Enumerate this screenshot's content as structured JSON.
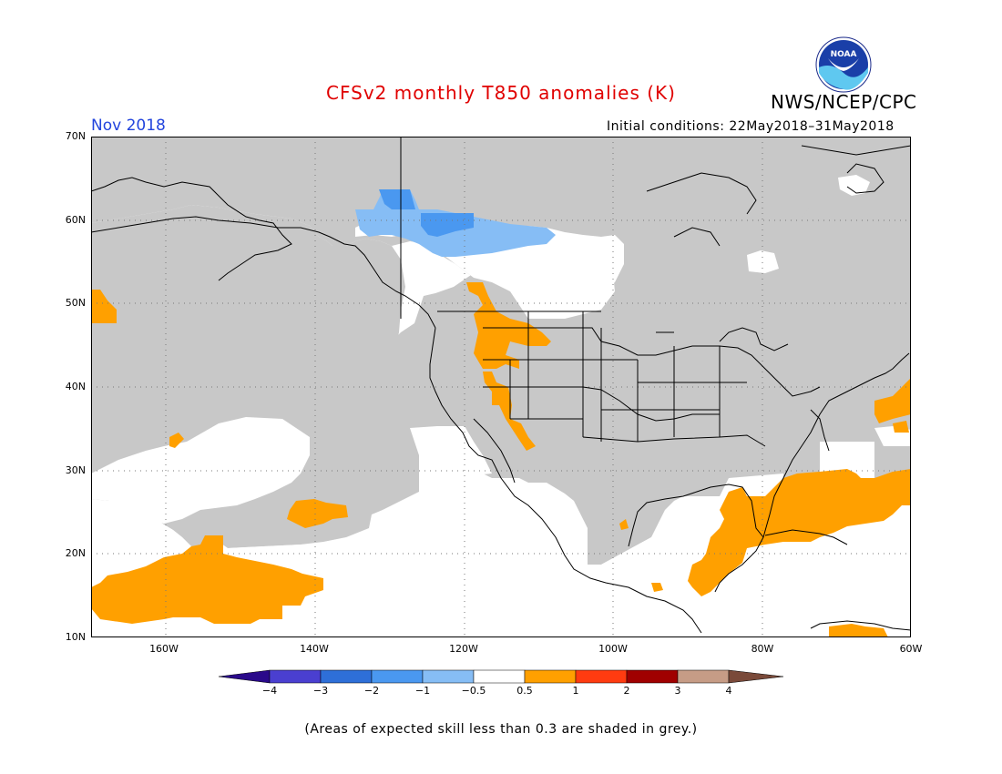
{
  "header": {
    "title": "CFSv2 monthly T850 anomalies (K)",
    "organization": "NWS/NCEP/CPC",
    "logo_text": "NOAA",
    "month": "Nov 2018",
    "initial_conditions": "Initial conditions: 22May2018–31May2018"
  },
  "axes": {
    "lat_labels": [
      "70N",
      "60N",
      "50N",
      "40N",
      "30N",
      "20N",
      "10N"
    ],
    "lon_labels": [
      "160W",
      "140W",
      "120W",
      "100W",
      "80W",
      "60W"
    ]
  },
  "legend": {
    "ticks": [
      "−4",
      "−3",
      "−2",
      "−1",
      "−0.5",
      "0.5",
      "1",
      "2",
      "3",
      "4"
    ],
    "colors": [
      "#2a0a8a",
      "#4a3fd0",
      "#2e6fd8",
      "#4a98f0",
      "#86bdf5",
      "#ffffff",
      "#ffa000",
      "#ff3b10",
      "#a00000",
      "#c69c86",
      "#7a4a3a"
    ]
  },
  "note": "(Areas of expected skill less than 0.3 are shaded in grey.)",
  "colors": {
    "title": "#e00000",
    "month": "#2244dd",
    "grey_mask": "#c8c8c8",
    "positive_anomaly": "#ffa000",
    "negative_light": "#86bdf5",
    "negative_medium": "#4a98f0"
  }
}
